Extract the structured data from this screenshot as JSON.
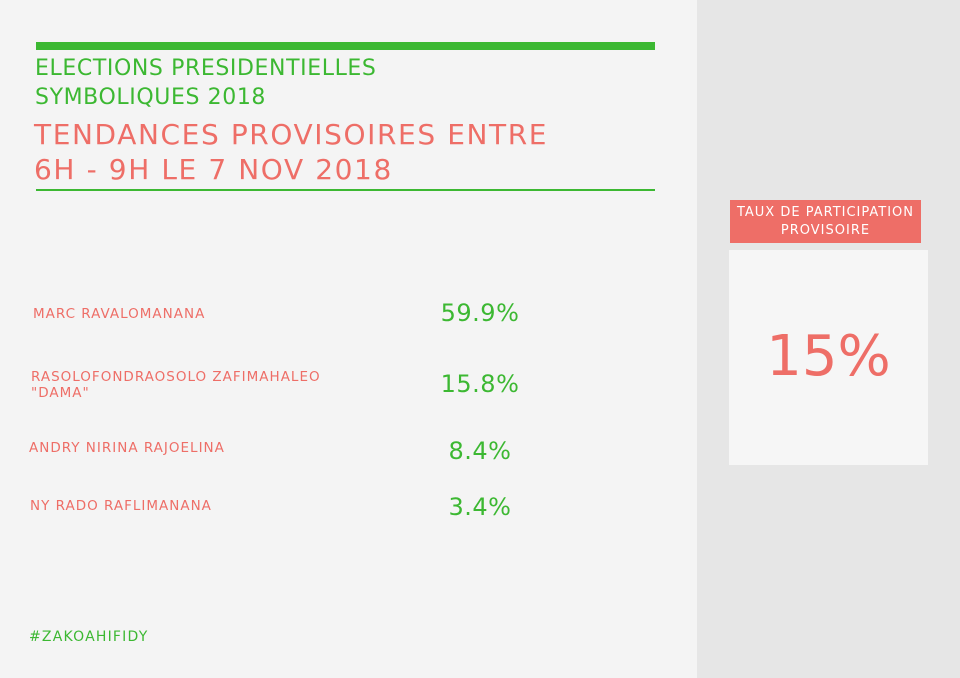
{
  "header": {
    "title_line1": "ELECTIONS PRESIDENTIELLES",
    "title_line2": "SYMBOLIQUES 2018",
    "subtitle_line1": "TENDANCES PROVISOIRES ENTRE",
    "subtitle_line2": "6H - 9H LE 7 NOV 2018"
  },
  "candidates": [
    {
      "name_line1": "MARC RAVALOMANANA",
      "name_line2": "",
      "percent": "59.9%"
    },
    {
      "name_line1": "RASOLOFONDRAOSOLO ZAFIMAHALEO",
      "name_line2": "\"DAMA\"",
      "percent": "15.8%"
    },
    {
      "name_line1": "ANDRY NIRINA RAJOELINA",
      "name_line2": "",
      "percent": "8.4%"
    },
    {
      "name_line1": "NY RADO RAFLIMANANA",
      "name_line2": "",
      "percent": "3.4%"
    }
  ],
  "participation": {
    "label_line1": "TAUX DE PARTICIPATION",
    "label_line2": "PROVISOIRE",
    "value": "15%"
  },
  "footer": {
    "hashtag": "#ZAKOAHIFIDY"
  },
  "colors": {
    "green": "#3cb832",
    "coral": "#ee6e67",
    "background": "#f4f4f4",
    "side_panel": "#e6e6e6"
  }
}
